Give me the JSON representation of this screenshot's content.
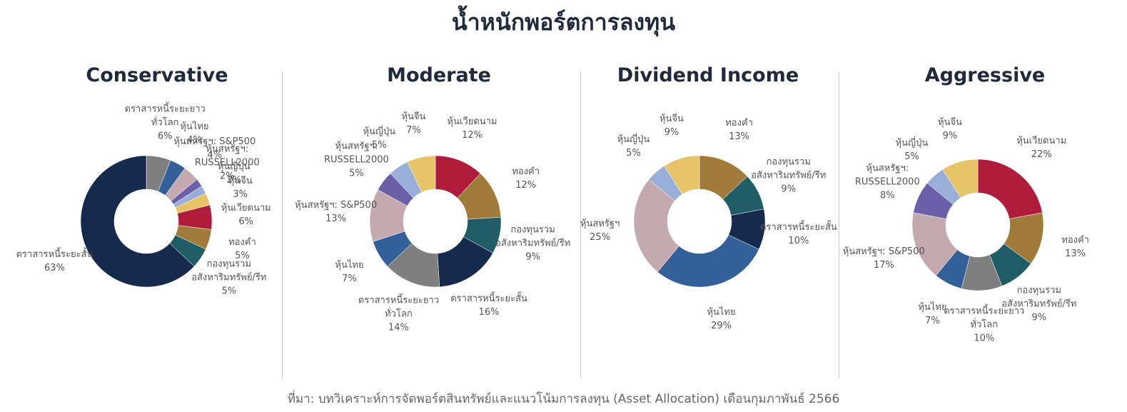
{
  "title": "น้ำหนักพอร์ตการลงทุน",
  "source": "ที่มา: บทวิเคราะห์การจัดพอร์ตสินทรัพย์และแนวโน้มการลงทุน (Asset Allocation) เดือนกุมภาพันธ์ 2566",
  "chart_data": [
    {
      "type": "pie",
      "title": "Conservative",
      "categories": [
        "ตราสารหนี้ระยะยาว\nทั่วโลก",
        "หุ้นไทย",
        "หุ้นสหรัฐฯ: S&P500",
        "หุ้นสหรัฐฯ:\nRUSSELL2000",
        "หุ้นญี่ปุ่น",
        "หุ้นจีน",
        "หุ้นเวียดนาม",
        "ทองคำ",
        "กองทุนรวม\nอสังหาริมทรัพย์/รีท",
        "ตราสารหนี้ระยะสั้น"
      ],
      "values": [
        6,
        4,
        4,
        2,
        2,
        3,
        6,
        5,
        5,
        63
      ],
      "value_labels": [
        "6%",
        "4%",
        "4%",
        "2%",
        "2%",
        "3%",
        "6%",
        "5%",
        "5%",
        "63%"
      ],
      "colors": [
        "#7f7f7f",
        "#34609a",
        "#c4a9b0",
        "#6a5fa8",
        "#9aafd8",
        "#e8c468",
        "#b01c3c",
        "#a07b3a",
        "#1f5c66",
        "#162a4d"
      ]
    },
    {
      "type": "pie",
      "title": "Moderate",
      "categories": [
        "หุ้นเวียดนาม",
        "ทองคำ",
        "กองทุนรวม\nอสังหาริมทรัพย์/รีท",
        "ตราสารหนี้ระยะสั้น",
        "ตราสารหนี้ระยะยาว\nทั่วโลก",
        "หุ้นไทย",
        "หุ้นสหรัฐฯ: S&P500",
        "หุ้นสหรัฐฯ:\nRUSSELL2000",
        "หุ้นญี่ปุ่น",
        "หุ้นจีน"
      ],
      "values": [
        12,
        12,
        9,
        16,
        14,
        7,
        13,
        5,
        5,
        7
      ],
      "value_labels": [
        "12%",
        "12%",
        "9%",
        "16%",
        "14%",
        "7%",
        "13%",
        "5%",
        "5%",
        "7%"
      ],
      "colors": [
        "#b01c3c",
        "#a07b3a",
        "#1f5c66",
        "#162a4d",
        "#7f7f7f",
        "#34609a",
        "#c4a9b0",
        "#6a5fa8",
        "#9aafd8",
        "#e8c468"
      ]
    },
    {
      "type": "pie",
      "title": "Dividend Income",
      "categories": [
        "ทองคำ",
        "กองทุนรวม\nอสังหาริมทรัพย์/รีท",
        "ตราสารหนี้ระยะสั้น",
        "หุ้นไทย",
        "หุ้นสหรัฐฯ",
        "หุ้นญี่ปุ่น",
        "หุ้นจีน"
      ],
      "values": [
        13,
        9,
        10,
        29,
        25,
        5,
        9
      ],
      "value_labels": [
        "13%",
        "9%",
        "10%",
        "29%",
        "25%",
        "5%",
        "9%"
      ],
      "colors": [
        "#a07b3a",
        "#1f5c66",
        "#162a4d",
        "#34609a",
        "#c4a9b0",
        "#9aafd8",
        "#e8c468"
      ]
    },
    {
      "type": "pie",
      "title": "Aggressive",
      "categories": [
        "หุ้นเวียดนาม",
        "ทองคำ",
        "กองทุนรวม\nอสังหาริมทรัพย์/รีท",
        "ตราสารหนี้ระยะยาว\nทั่วโลก",
        "หุ้นไทย",
        "หุ้นสหรัฐฯ: S&P500",
        "หุ้นสหรัฐฯ:\nRUSSELL2000",
        "หุ้นญี่ปุ่น",
        "หุ้นจีน"
      ],
      "values": [
        22,
        13,
        9,
        10,
        7,
        17,
        8,
        5,
        9
      ],
      "value_labels": [
        "22%",
        "13%",
        "9%",
        "10%",
        "7%",
        "17%",
        "8%",
        "5%",
        "9%"
      ],
      "colors": [
        "#b01c3c",
        "#a07b3a",
        "#1f5c66",
        "#7f7f7f",
        "#34609a",
        "#c4a9b0",
        "#6a5fa8",
        "#9aafd8",
        "#e8c468"
      ]
    }
  ]
}
